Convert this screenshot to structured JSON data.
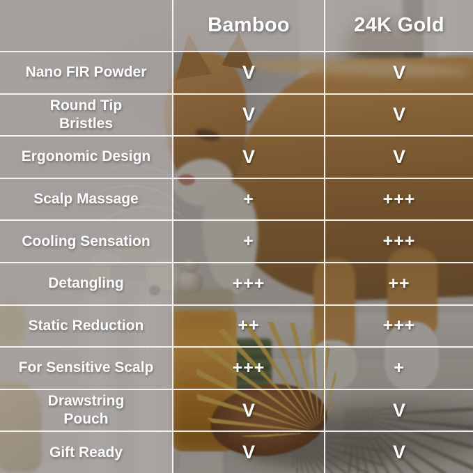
{
  "header": {
    "feature_column": "",
    "columns": [
      "Bamboo",
      "24K Gold"
    ]
  },
  "rows": [
    {
      "label": "Nano FIR Powder",
      "bamboo": "V",
      "gold": "V"
    },
    {
      "label": "Round Tip\nBristles",
      "bamboo": "V",
      "gold": "V"
    },
    {
      "label": "Ergonomic Design",
      "bamboo": "V",
      "gold": "V"
    },
    {
      "label": "Scalp Massage",
      "bamboo": "+",
      "gold": "+++"
    },
    {
      "label": "Cooling Sensation",
      "bamboo": "+",
      "gold": "+++"
    },
    {
      "label": "Detangling",
      "bamboo": "+++",
      "gold": "++"
    },
    {
      "label": "Static Reduction",
      "bamboo": "++",
      "gold": "+++"
    },
    {
      "label": "For Sensitive Scalp",
      "bamboo": "+++",
      "gold": "+"
    },
    {
      "label": "Drawstring\nPouch",
      "bamboo": "V",
      "gold": "V"
    },
    {
      "label": "Gift Ready",
      "bamboo": "V",
      "gold": "V"
    }
  ],
  "colors": {
    "text": "#ffffff",
    "grid_line": "#faf9f7",
    "label_cell_overlay": "rgba(152,148,145,0.80)",
    "value_cell_overlay": "rgba(42,37,32,0.44)"
  }
}
